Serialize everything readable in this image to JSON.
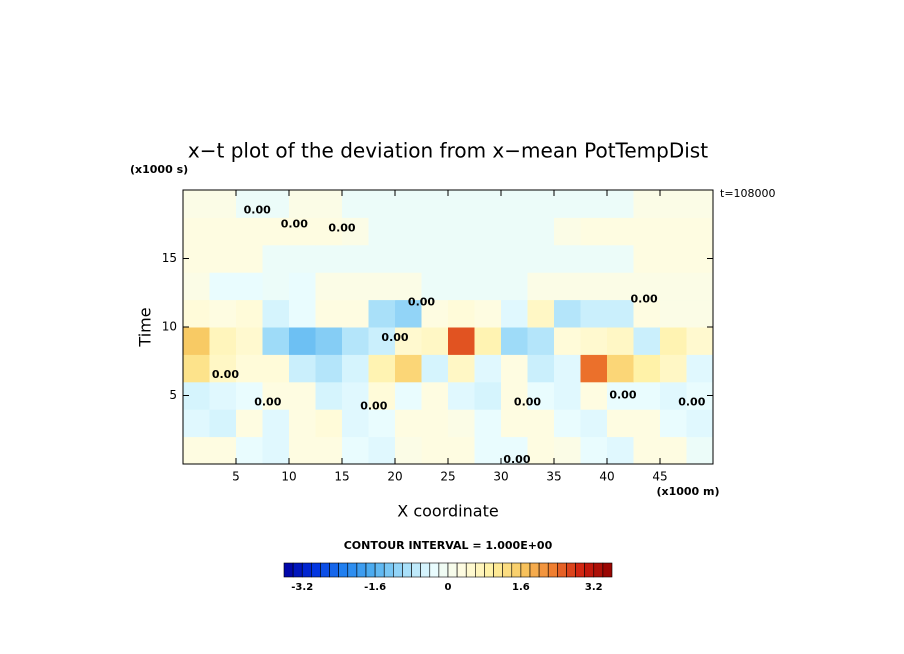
{
  "chart_data": {
    "type": "heatmap",
    "title": "x−t plot of the deviation from x−mean PotTempDist",
    "y_unit": "(x1000 s)",
    "time_label": "t=108000",
    "ylabel": "Time",
    "xlabel": "X coordinate",
    "x_unit": "(x1000 m)",
    "contour_interval": "CONTOUR INTERVAL = 1.000E+00",
    "contour_label": "0.00",
    "x": [
      1.25,
      3.75,
      6.25,
      8.75,
      11.25,
      13.75,
      16.25,
      18.75,
      21.25,
      23.75,
      26.25,
      28.75,
      31.25,
      33.75,
      36.25,
      38.75,
      41.25,
      43.75,
      46.25,
      48.75
    ],
    "y": [
      1,
      3,
      5,
      7,
      9,
      11,
      13,
      15,
      17,
      19
    ],
    "z": [
      [
        0.3,
        0.3,
        -0.3,
        -0.4,
        0.3,
        0.3,
        -0.3,
        -0.4,
        0.2,
        0.3,
        0.3,
        -0.3,
        -0.3,
        0.3,
        0.2,
        -0.3,
        -0.4,
        0.3,
        0.3,
        -0.2
      ],
      [
        -0.4,
        -0.5,
        0.3,
        -0.4,
        0.3,
        0.4,
        -0.4,
        -0.3,
        0.3,
        0.3,
        0.2,
        -0.3,
        0.3,
        0.3,
        -0.3,
        -0.4,
        0.3,
        0.3,
        -0.3,
        -0.4
      ],
      [
        -0.5,
        -0.4,
        -0.3,
        0.3,
        0.3,
        -0.5,
        -0.4,
        0.4,
        -0.3,
        0.3,
        -0.4,
        -0.5,
        0.3,
        -0.3,
        -0.4,
        0.3,
        -0.3,
        -0.3,
        -0.4,
        -0.3
      ],
      [
        1.2,
        0.6,
        0.4,
        0.4,
        -0.6,
        -0.8,
        -0.5,
        0.8,
        1.4,
        -0.5,
        0.6,
        -0.4,
        0.3,
        -0.6,
        -0.4,
        2.4,
        1.4,
        0.9,
        0.6,
        -0.4
      ],
      [
        1.6,
        0.7,
        0.5,
        -1.0,
        -1.4,
        -1.2,
        -0.8,
        -0.6,
        0.5,
        0.6,
        2.6,
        0.8,
        -1.0,
        -0.8,
        0.4,
        0.5,
        0.6,
        -0.6,
        0.8,
        0.5
      ],
      [
        0.4,
        0.3,
        0.4,
        -0.5,
        -0.3,
        0.3,
        0.3,
        -0.9,
        -1.1,
        0.3,
        0.4,
        0.3,
        -0.4,
        0.6,
        -0.8,
        -0.6,
        -0.6,
        0.3,
        0.2,
        0.2
      ],
      [
        0.2,
        -0.3,
        -0.3,
        -0.2,
        -0.3,
        0.2,
        0.2,
        0.2,
        0.2,
        -0.2,
        -0.2,
        -0.2,
        -0.2,
        0.2,
        0.2,
        0.2,
        0.2,
        0.2,
        0.2,
        0.2
      ],
      [
        0.3,
        0.3,
        0.3,
        -0.2,
        -0.2,
        -0.2,
        -0.2,
        -0.2,
        -0.2,
        -0.2,
        -0.2,
        -0.2,
        -0.2,
        -0.2,
        -0.2,
        -0.2,
        -0.2,
        0.3,
        0.3,
        0.3
      ],
      [
        0.3,
        0.3,
        0.3,
        0.3,
        0.3,
        0.3,
        0.2,
        -0.2,
        -0.2,
        -0.2,
        -0.2,
        -0.2,
        -0.2,
        -0.2,
        0.2,
        0.3,
        0.3,
        0.3,
        0.3,
        0.3
      ],
      [
        0.2,
        0.2,
        -0.2,
        -0.2,
        0.2,
        0.2,
        -0.2,
        -0.2,
        -0.2,
        -0.2,
        -0.2,
        -0.2,
        -0.2,
        -0.2,
        -0.2,
        -0.2,
        -0.2,
        0.2,
        0.2,
        0.2
      ]
    ],
    "xlim": [
      0,
      50
    ],
    "ylim": [
      0,
      20
    ],
    "xticks": [
      5,
      10,
      15,
      20,
      25,
      30,
      35,
      40,
      45
    ],
    "yticks": [
      5,
      10,
      15
    ],
    "clim": [
      -3.6,
      3.6
    ],
    "colorbar_ticks": [
      -3.2,
      -1.6,
      0,
      1.6,
      3.2
    ],
    "colormap": [
      "#0000a0",
      "#0030e0",
      "#2080f0",
      "#50b0f0",
      "#a0dcf8",
      "#e8fcff",
      "#fffce0",
      "#fff0a0",
      "#f8c860",
      "#f08030",
      "#d02010",
      "#900000"
    ]
  }
}
